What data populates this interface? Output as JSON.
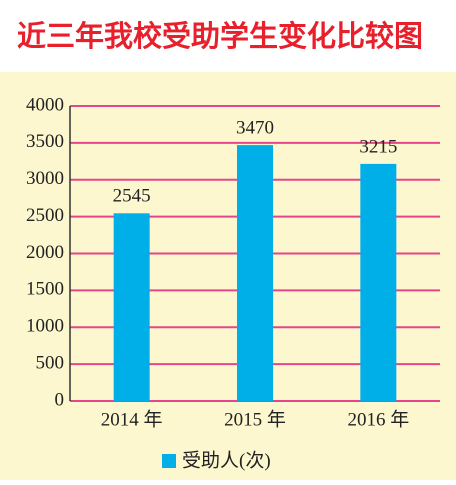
{
  "chart_data": {
    "type": "bar",
    "title": "近三年我校受助学生变化比较图",
    "categories": [
      "2014 年",
      "2015 年",
      "2016 年"
    ],
    "series": [
      {
        "name": "受助人(次)",
        "color": "#00aee8",
        "values": [
          2545,
          3470,
          3215
        ]
      }
    ],
    "ylim": [
      0,
      4000
    ],
    "yticks": [
      0,
      500,
      1000,
      1500,
      2000,
      2500,
      3000,
      3500,
      4000
    ],
    "grid": true,
    "legend": "bottom"
  }
}
